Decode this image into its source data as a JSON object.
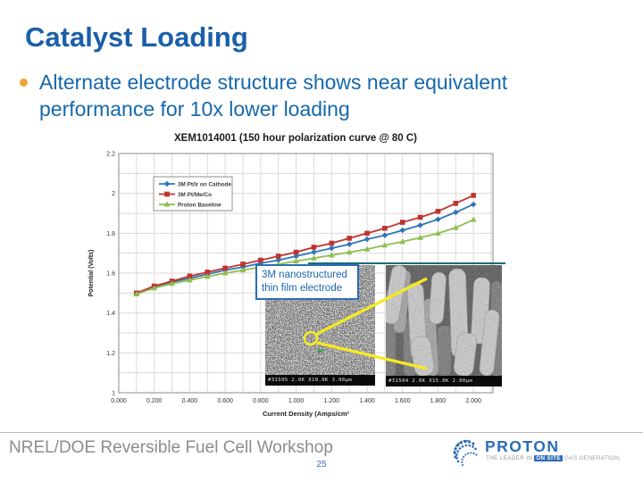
{
  "slide": {
    "title": "Catalyst Loading",
    "bullet": "Alternate electrode structure shows near equivalent performance for 10x lower loading",
    "page_number": "25"
  },
  "callout": {
    "line1": "3M nanostructured",
    "line2": "thin film electrode"
  },
  "sem": {
    "left_caption": "#31505 2.0K X10.0K 3.00µm",
    "right_caption": "#31504 2.0K X15.0K 2.00µm"
  },
  "footer": {
    "workshop": "NREL/DOE Reversible Fuel Cell Workshop",
    "logo": {
      "name": "PROTON",
      "tagline_prefix": "THE LEADER IN",
      "tagline_highlight": "ON SITE",
      "tagline_suffix": "GAS GENERATION."
    }
  },
  "colors": {
    "title_blue": "#1A5FA8",
    "bullet_orange": "#F0A433",
    "logo_blue": "#2B6CB8",
    "teal_line": "#196B78",
    "annotation_yellow": "#F5E926",
    "footer_gray": "#8C8C8C"
  },
  "chart_data": {
    "type": "line",
    "title": "XEM1014001 (150 hour polarization curve @ 80 C)",
    "xlabel": "Current Density (Amps/cm²",
    "ylabel": "Potential (Volts)",
    "xlim": [
      0,
      2.11
    ],
    "ylim": [
      1.0,
      2.2
    ],
    "grid": true,
    "x_minor_step": 0.1,
    "y_minor_step": 0.1,
    "x_ticks": [
      0,
      0.2,
      0.4,
      0.6,
      0.8,
      1.0,
      1.2,
      1.4,
      1.6,
      1.8,
      2.0
    ],
    "x_tick_labels": [
      "0.000",
      "0.200",
      "0.400",
      "0.600",
      "0.800",
      "1.000",
      "1.200",
      "1.400",
      "1.600",
      "1.800",
      "2.000"
    ],
    "y_ticks": [
      1.0,
      1.2,
      1.4,
      1.6,
      1.8,
      2.0,
      2.2
    ],
    "y_tick_labels": [
      "1",
      "1.2",
      "1.4",
      "1.6",
      "1.8",
      "2",
      "2.2"
    ],
    "legend_position": "upper-left-inside",
    "x": [
      0.1,
      0.2,
      0.3,
      0.4,
      0.5,
      0.6,
      0.7,
      0.8,
      0.9,
      1.0,
      1.1,
      1.2,
      1.3,
      1.4,
      1.5,
      1.6,
      1.7,
      1.8,
      1.9,
      2.0
    ],
    "series": [
      {
        "name": "3M Pt/Ir on Cathode",
        "color": "#2E75B6",
        "marker": "diamond",
        "values": [
          1.5,
          1.53,
          1.555,
          1.575,
          1.595,
          1.615,
          1.63,
          1.65,
          1.665,
          1.685,
          1.705,
          1.725,
          1.745,
          1.77,
          1.79,
          1.815,
          1.84,
          1.87,
          1.905,
          1.945
        ]
      },
      {
        "name": "3M Pt/Me/Co",
        "color": "#BE3430",
        "marker": "square",
        "values": [
          1.5,
          1.535,
          1.56,
          1.585,
          1.605,
          1.625,
          1.645,
          1.665,
          1.685,
          1.705,
          1.73,
          1.75,
          1.775,
          1.8,
          1.825,
          1.855,
          1.88,
          1.91,
          1.95,
          1.99
        ]
      },
      {
        "name": "Proton Baseline",
        "color": "#8CBF4F",
        "marker": "triangle",
        "values": [
          1.495,
          1.525,
          1.548,
          1.565,
          1.583,
          1.6,
          1.615,
          1.63,
          1.645,
          1.66,
          1.675,
          1.69,
          1.705,
          1.72,
          1.74,
          1.758,
          1.778,
          1.8,
          1.828,
          1.868
        ]
      }
    ]
  }
}
